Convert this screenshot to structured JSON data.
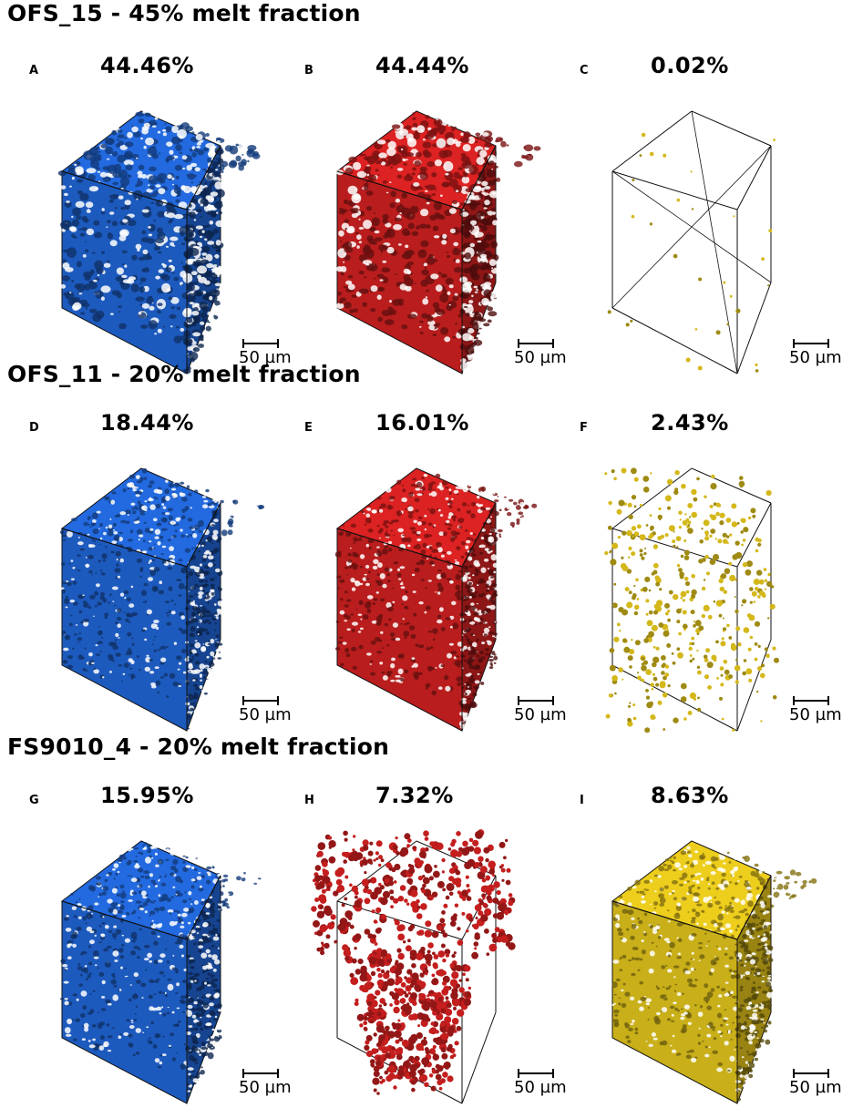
{
  "rows": [
    {
      "title": "OFS_15 - 45% melt fraction",
      "panels": [
        {
          "letter": "A",
          "value": "44.46%",
          "phase_color": "#1f5fc8",
          "density": 0.55
        },
        {
          "letter": "B",
          "value": "44.44%",
          "phase_color": "#c41e1e",
          "density": 0.55
        },
        {
          "letter": "C",
          "value": "0.02%",
          "phase_color": "#d4b81a",
          "density": 0.02
        }
      ]
    },
    {
      "title": "OFS_11 - 20% melt fraction",
      "panels": [
        {
          "letter": "D",
          "value": "18.44%",
          "phase_color": "#1f5fc8",
          "density": 0.5
        },
        {
          "letter": "E",
          "value": "16.01%",
          "phase_color": "#c41e1e",
          "density": 0.45
        },
        {
          "letter": "F",
          "value": "2.43%",
          "phase_color": "#d4b81a",
          "density": 0.12
        }
      ]
    },
    {
      "title": "FS9010_4 - 20% melt fraction",
      "panels": [
        {
          "letter": "G",
          "value": "15.95%",
          "phase_color": "#1f5fc8",
          "density": 0.5
        },
        {
          "letter": "H",
          "value": "7.32%",
          "phase_color": "#c41e1e",
          "density": 0.3
        },
        {
          "letter": "I",
          "value": "8.63%",
          "phase_color": "#d4b81a",
          "density": 0.5
        }
      ]
    }
  ],
  "scale_bar_label": "50 µm"
}
